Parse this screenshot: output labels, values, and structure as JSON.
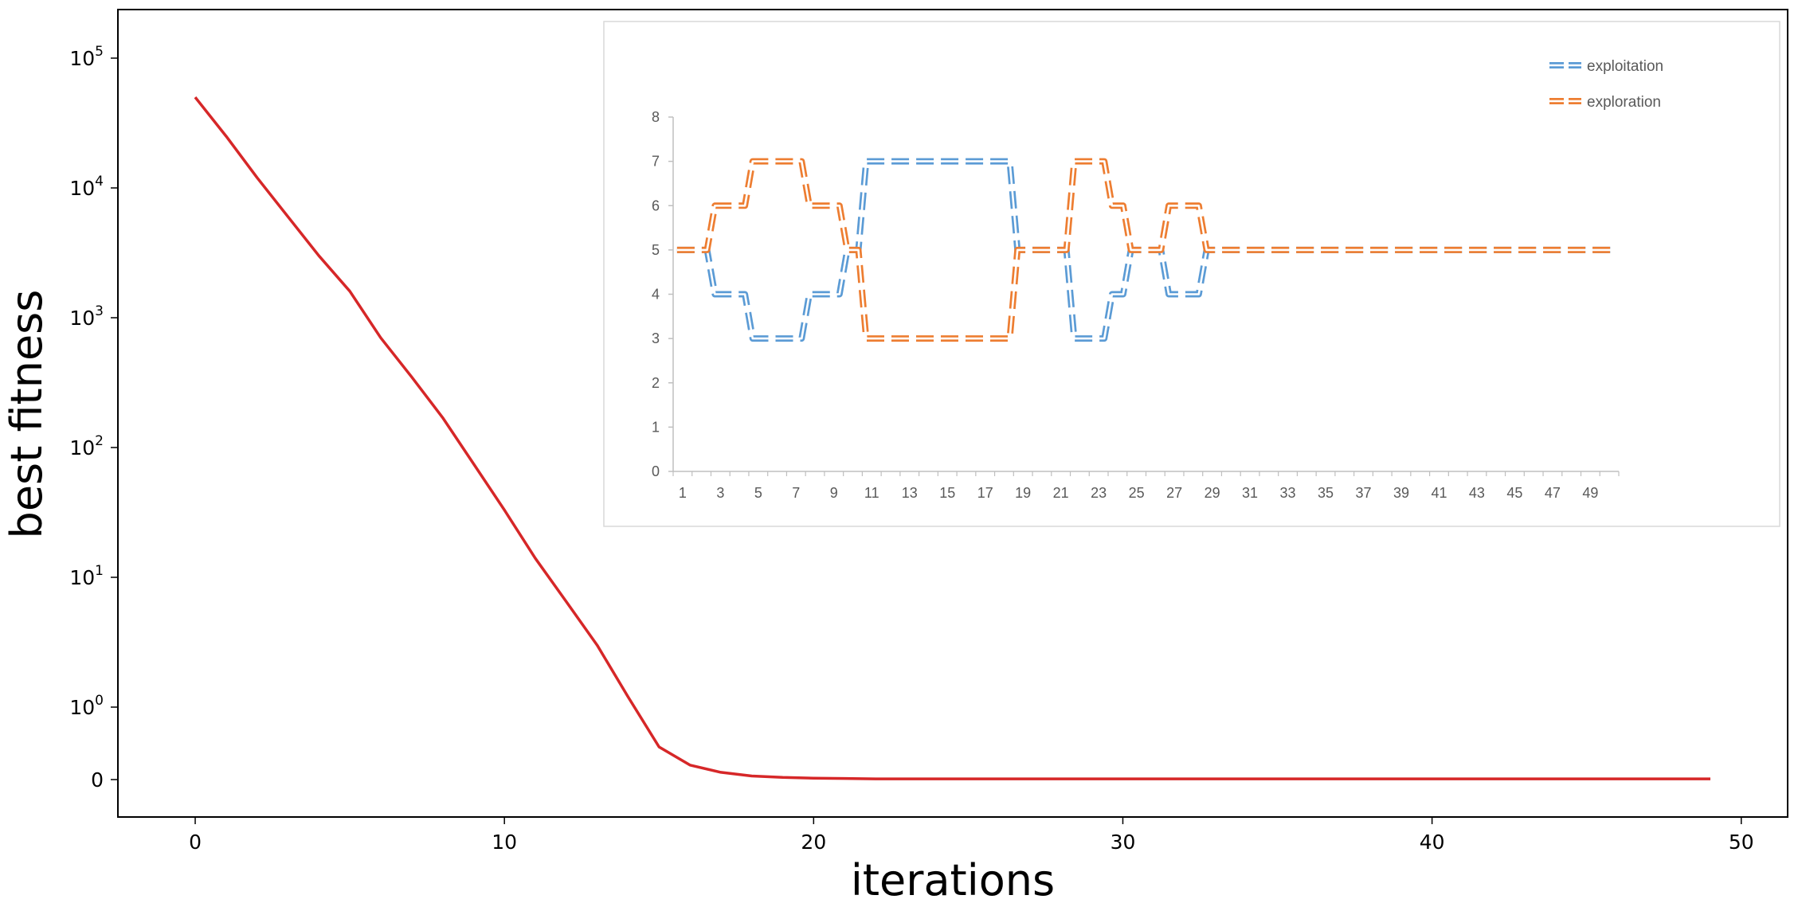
{
  "chart_data": [
    {
      "type": "line",
      "xlabel": "iterations",
      "ylabel": "best fitness",
      "xlim": [
        -2.5,
        51.5
      ],
      "x_ticks": [
        0,
        10,
        20,
        30,
        40,
        50
      ],
      "yscale": "symlog",
      "y_ticks": [
        {
          "value": 0,
          "base": "0",
          "exp": ""
        },
        {
          "value": 1,
          "base": "10",
          "exp": "0"
        },
        {
          "value": 10,
          "base": "10",
          "exp": "1"
        },
        {
          "value": 100,
          "base": "10",
          "exp": "2"
        },
        {
          "value": 1000,
          "base": "10",
          "exp": "3"
        },
        {
          "value": 10000,
          "base": "10",
          "exp": "4"
        },
        {
          "value": 100000,
          "base": "10",
          "exp": "5"
        }
      ],
      "grid": false,
      "series": [
        {
          "color": "#d62728",
          "x": [
            0,
            1,
            2,
            3,
            4,
            5,
            6,
            7,
            8,
            9,
            10,
            11,
            12,
            13,
            14,
            15,
            16,
            17,
            18,
            19,
            20,
            21,
            22,
            23,
            24,
            25,
            26,
            27,
            28,
            29,
            30,
            31,
            32,
            33,
            34,
            35,
            36,
            37,
            38,
            39,
            40,
            41,
            42,
            43,
            44,
            45,
            46,
            47,
            48,
            49
          ],
          "y": [
            50000,
            25000,
            12000,
            6000,
            3000,
            1600,
            700,
            350,
            170,
            75,
            33,
            14,
            6.5,
            3,
            1.2,
            0.45,
            0.2,
            0.1,
            0.05,
            0.03,
            0.02,
            0.015,
            0.01,
            0.01,
            0.01,
            0.01,
            0.01,
            0.01,
            0.01,
            0.01,
            0.01,
            0.01,
            0.01,
            0.01,
            0.01,
            0.01,
            0.01,
            0.01,
            0.01,
            0.01,
            0.01,
            0.01,
            0.01,
            0.01,
            0.01,
            0.01,
            0.01,
            0.01,
            0.01,
            0.01
          ]
        }
      ]
    },
    {
      "type": "line",
      "ylim": [
        0,
        8
      ],
      "y_ticks": [
        0,
        1,
        2,
        3,
        4,
        5,
        6,
        7,
        8
      ],
      "x_tick_labels": [
        1,
        3,
        5,
        7,
        9,
        11,
        13,
        15,
        17,
        19,
        21,
        23,
        25,
        27,
        29,
        31,
        33,
        35,
        37,
        39,
        41,
        43,
        45,
        47,
        49
      ],
      "line_style": "double-dashed",
      "legend_position": "top-right",
      "series": [
        {
          "name": "exploitation",
          "color": "#5b9bd5",
          "x": [
            1,
            2,
            3,
            4,
            5,
            6,
            7,
            8,
            9,
            10,
            11,
            12,
            13,
            14,
            15,
            16,
            17,
            18,
            19,
            20,
            21,
            22,
            23,
            24,
            25,
            26,
            27,
            28,
            29,
            30,
            31,
            32,
            33,
            34,
            35,
            36,
            37,
            38,
            39,
            40,
            41,
            42,
            43,
            44,
            45,
            46,
            47,
            48,
            49,
            50
          ],
          "values": [
            5,
            5,
            4,
            4,
            3,
            3,
            3,
            4,
            4,
            5,
            7,
            7,
            7,
            7,
            7,
            7,
            7,
            7,
            5,
            5,
            5,
            3,
            3,
            4,
            5,
            5,
            4,
            4,
            5,
            5,
            5,
            5,
            5,
            5,
            5,
            5,
            5,
            5,
            5,
            5,
            5,
            5,
            5,
            5,
            5,
            5,
            5,
            5,
            5,
            5
          ]
        },
        {
          "name": "exploration",
          "color": "#ed7d31",
          "x": [
            1,
            2,
            3,
            4,
            5,
            6,
            7,
            8,
            9,
            10,
            11,
            12,
            13,
            14,
            15,
            16,
            17,
            18,
            19,
            20,
            21,
            22,
            23,
            24,
            25,
            26,
            27,
            28,
            29,
            30,
            31,
            32,
            33,
            34,
            35,
            36,
            37,
            38,
            39,
            40,
            41,
            42,
            43,
            44,
            45,
            46,
            47,
            48,
            49,
            50
          ],
          "values": [
            5,
            5,
            6,
            6,
            7,
            7,
            7,
            6,
            6,
            5,
            3,
            3,
            3,
            3,
            3,
            3,
            3,
            3,
            5,
            5,
            5,
            7,
            7,
            6,
            5,
            5,
            6,
            6,
            5,
            5,
            5,
            5,
            5,
            5,
            5,
            5,
            5,
            5,
            5,
            5,
            5,
            5,
            5,
            5,
            5,
            5,
            5,
            5,
            5,
            5
          ]
        }
      ]
    }
  ]
}
